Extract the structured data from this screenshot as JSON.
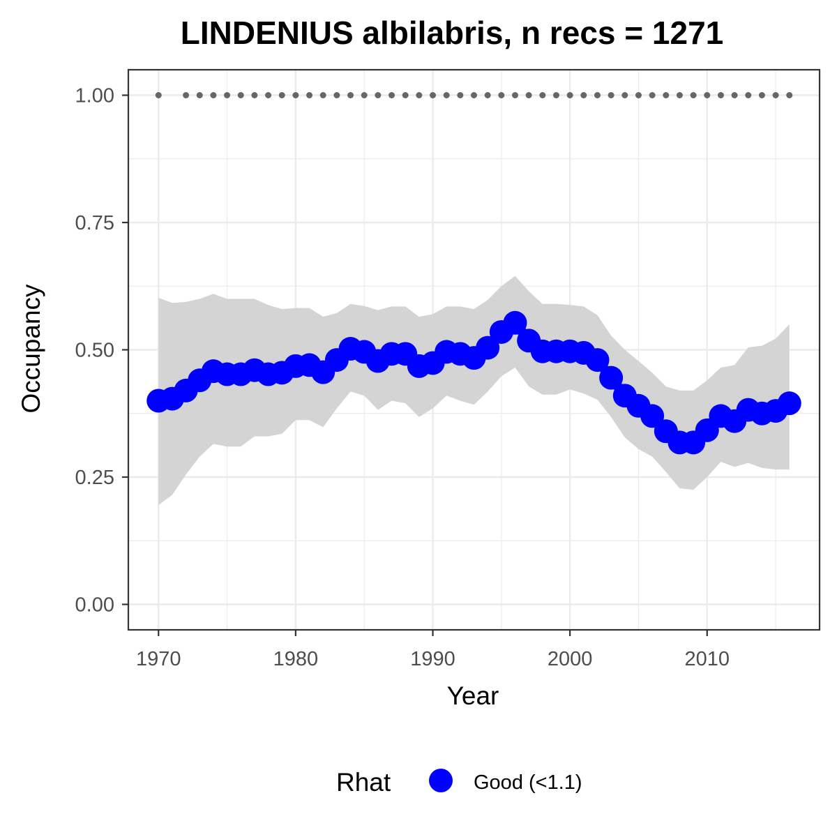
{
  "chart_data": {
    "type": "line",
    "title": "LINDENIUS albilabris, n recs = 1271",
    "xlabel": "Year",
    "ylabel": "Occupancy",
    "xlim": [
      1967.8,
      2018.2
    ],
    "ylim": [
      -0.05,
      1.05
    ],
    "x_ticks": [
      1970,
      1980,
      1990,
      2000,
      2010
    ],
    "x_tick_labels": [
      "1970",
      "1980",
      "1990",
      "2000",
      "2010"
    ],
    "y_ticks": [
      0,
      0.25,
      0.5,
      0.75,
      1.0
    ],
    "y_tick_labels": [
      "0.00",
      "0.25",
      "0.50",
      "0.75",
      "1.00"
    ],
    "grid": true,
    "legend": {
      "position": "bottom",
      "title": "Rhat",
      "entries": [
        {
          "label": "Good (<1.1)",
          "color": "#0000ff"
        }
      ]
    },
    "colors": {
      "series": "#0000ff",
      "ribbon": "#d4d4d4",
      "records": "#666666",
      "grid": "#ebebeb",
      "border": "#333333"
    },
    "x": [
      1970,
      1971,
      1972,
      1973,
      1974,
      1975,
      1976,
      1977,
      1978,
      1979,
      1980,
      1981,
      1982,
      1983,
      1984,
      1985,
      1986,
      1987,
      1988,
      1989,
      1990,
      1991,
      1992,
      1993,
      1994,
      1995,
      1996,
      1997,
      1998,
      1999,
      2000,
      2001,
      2002,
      2003,
      2004,
      2005,
      2006,
      2007,
      2008,
      2009,
      2010,
      2011,
      2012,
      2013,
      2014,
      2015,
      2016
    ],
    "series": [
      {
        "name": "Occupancy",
        "values": [
          0.4,
          0.404,
          0.42,
          0.44,
          0.458,
          0.452,
          0.452,
          0.46,
          0.452,
          0.455,
          0.468,
          0.47,
          0.456,
          0.48,
          0.502,
          0.496,
          0.478,
          0.492,
          0.492,
          0.468,
          0.474,
          0.496,
          0.492,
          0.484,
          0.504,
          0.535,
          0.553,
          0.518,
          0.497,
          0.497,
          0.497,
          0.494,
          0.48,
          0.445,
          0.41,
          0.39,
          0.37,
          0.34,
          0.318,
          0.318,
          0.342,
          0.37,
          0.36,
          0.382,
          0.375,
          0.38,
          0.395
        ],
        "lower": [
          0.195,
          0.215,
          0.255,
          0.29,
          0.315,
          0.31,
          0.31,
          0.33,
          0.33,
          0.335,
          0.362,
          0.362,
          0.348,
          0.385,
          0.418,
          0.41,
          0.382,
          0.4,
          0.395,
          0.368,
          0.385,
          0.41,
          0.4,
          0.392,
          0.418,
          0.448,
          0.465,
          0.428,
          0.412,
          0.412,
          0.422,
          0.414,
          0.402,
          0.368,
          0.328,
          0.305,
          0.29,
          0.26,
          0.228,
          0.225,
          0.25,
          0.28,
          0.27,
          0.278,
          0.268,
          0.265,
          0.265
        ],
        "upper": [
          0.602,
          0.592,
          0.594,
          0.6,
          0.61,
          0.6,
          0.6,
          0.6,
          0.588,
          0.58,
          0.582,
          0.582,
          0.565,
          0.572,
          0.59,
          0.586,
          0.578,
          0.585,
          0.585,
          0.565,
          0.57,
          0.585,
          0.585,
          0.58,
          0.598,
          0.625,
          0.645,
          0.615,
          0.59,
          0.59,
          0.588,
          0.585,
          0.568,
          0.528,
          0.5,
          0.478,
          0.455,
          0.428,
          0.42,
          0.42,
          0.44,
          0.465,
          0.47,
          0.505,
          0.508,
          0.522,
          0.55
        ]
      }
    ],
    "records_y": 1.0,
    "records_x": [
      1970,
      1972,
      1973,
      1974,
      1975,
      1976,
      1977,
      1978,
      1979,
      1980,
      1981,
      1982,
      1983,
      1984,
      1985,
      1986,
      1987,
      1988,
      1989,
      1990,
      1991,
      1992,
      1993,
      1994,
      1995,
      1996,
      1997,
      1998,
      1999,
      2000,
      2001,
      2002,
      2003,
      2004,
      2005,
      2006,
      2007,
      2008,
      2009,
      2010,
      2011,
      2012,
      2013,
      2014,
      2015,
      2016
    ]
  }
}
